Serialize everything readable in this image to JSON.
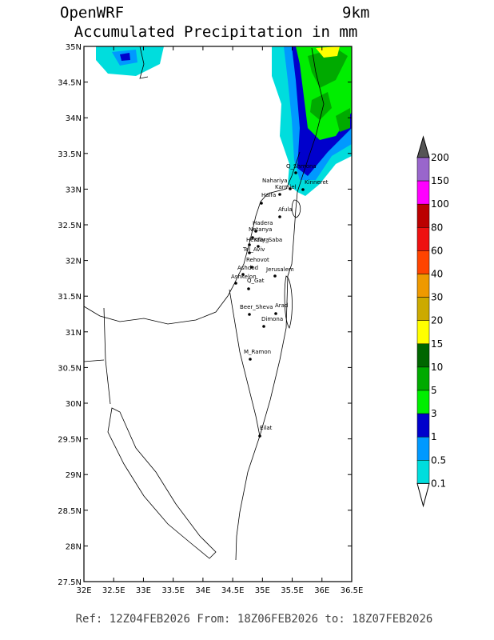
{
  "header": {
    "model": "OpenWRF",
    "resolution": "9km",
    "title": "Accumulated Precipitation in mm"
  },
  "map": {
    "lat_ticks": [
      "35N",
      "34.5N",
      "34N",
      "33.5N",
      "33N",
      "32.5N",
      "32N",
      "31.5N",
      "31N",
      "30.5N",
      "30N",
      "29.5N",
      "29N",
      "28.5N",
      "28N",
      "27.5N"
    ],
    "lon_ticks": [
      "32E",
      "32.5E",
      "33E",
      "33.5E",
      "34E",
      "34.5E",
      "35E",
      "35.5E",
      "36E",
      "36.5E"
    ],
    "cities": [
      "Q_Shmona",
      "Nahariya",
      "Karmiel",
      "Kinneret",
      "Haifa",
      "Afula",
      "Hadera",
      "Netanya",
      "Herzliya",
      "Kfar_Saba",
      "Tel_Aviv",
      "Rehovot",
      "Ashdod",
      "Ashkelon",
      "Q_Gat",
      "Jerusalem",
      "Beer_Sheva",
      "Arad",
      "Dimona",
      "M_Ramon",
      "Eilat"
    ]
  },
  "colorbar": {
    "levels": [
      "200",
      "150",
      "100",
      "80",
      "60",
      "40",
      "30",
      "20",
      "15",
      "10",
      "5",
      "3",
      "1",
      "0.5",
      "0.1"
    ],
    "colors": [
      "#9966cc",
      "#ff00ff",
      "#bb0000",
      "#ee1111",
      "#ff4400",
      "#ee9900",
      "#ccaa00",
      "#ffff00",
      "#006600",
      "#00aa00",
      "#00ee00",
      "#0000cc",
      "#0099ff",
      "#00dddd"
    ],
    "over_color": "#555555",
    "under_color": "#ffffff"
  },
  "footer": "Ref: 12Z04FEB2026  From: 18Z06FEB2026  to: 18Z07FEB2026"
}
